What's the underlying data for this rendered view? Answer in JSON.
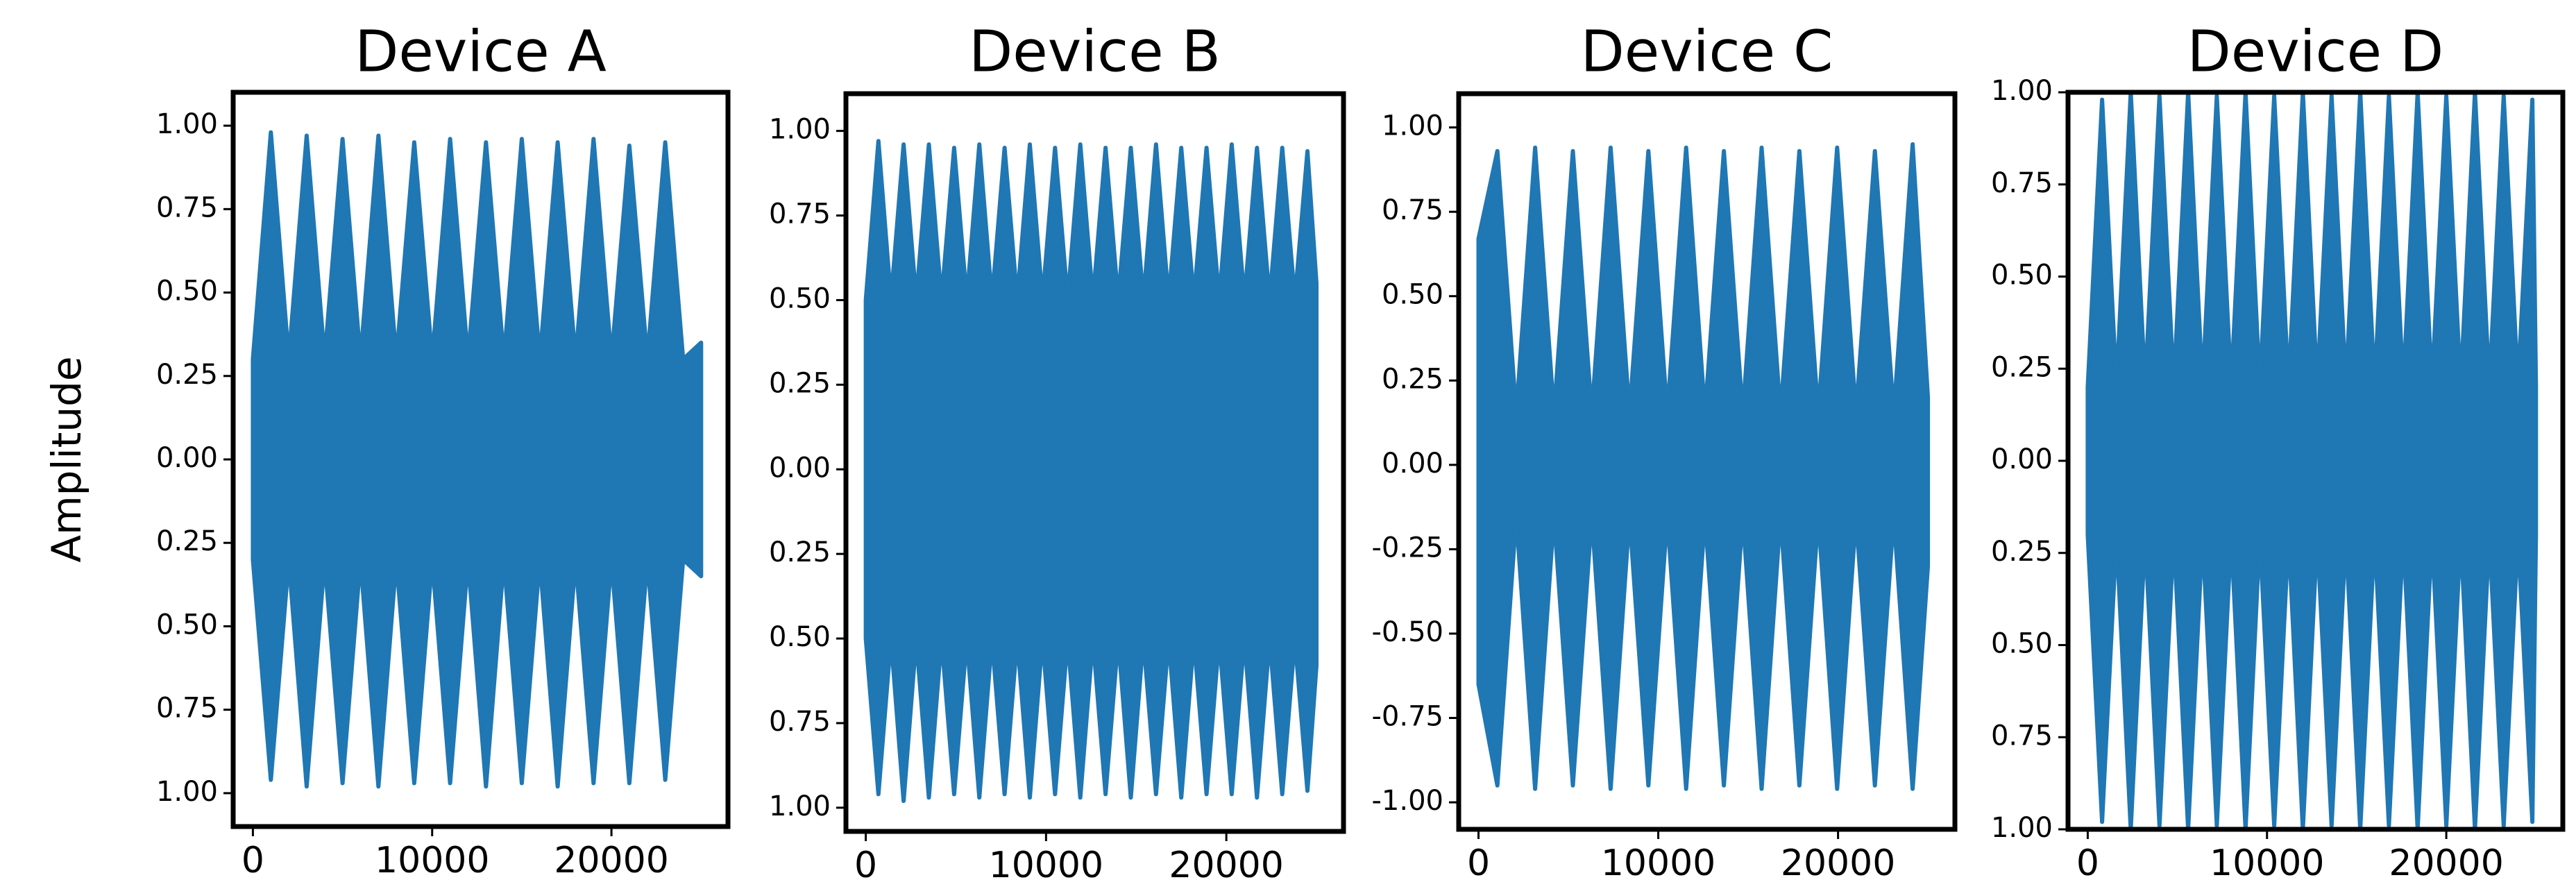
{
  "chart_data": [
    {
      "type": "area",
      "title": "Device A",
      "ylabel": "Amplitude",
      "color": "#1f77b4",
      "xlim": [
        -1100,
        26500
      ],
      "ylim": [
        -1.1,
        1.1
      ],
      "xticks": [
        0,
        10000,
        20000
      ],
      "yticks": [
        {
          "value": 1,
          "label": "1.00"
        },
        0.75,
        {
          "value": 0.5,
          "label": "0.50"
        },
        0.25,
        {
          "value": 0,
          "label": "0.00"
        },
        {
          "value": -0.25,
          "label": "0.25"
        },
        {
          "value": -0.5,
          "label": "0.50"
        },
        {
          "value": -0.75,
          "label": "0.75"
        },
        {
          "value": -1,
          "label": "1.00"
        }
      ],
      "x": [
        0,
        1000,
        2000,
        3000,
        4000,
        5000,
        6000,
        7000,
        8000,
        9000,
        10000,
        11000,
        12000,
        13000,
        14000,
        15000,
        16000,
        17000,
        18000,
        19000,
        20000,
        21000,
        22000,
        23000,
        24000,
        25000
      ],
      "upper": [
        0.3,
        0.98,
        0.3,
        0.97,
        0.3,
        0.96,
        0.3,
        0.97,
        0.3,
        0.95,
        0.3,
        0.96,
        0.3,
        0.95,
        0.3,
        0.96,
        0.3,
        0.95,
        0.3,
        0.96,
        0.3,
        0.94,
        0.3,
        0.95,
        0.3,
        0.35
      ],
      "lower": [
        -0.3,
        -0.96,
        -0.3,
        -0.98,
        -0.3,
        -0.97,
        -0.3,
        -0.98,
        -0.3,
        -0.97,
        -0.3,
        -0.97,
        -0.3,
        -0.98,
        -0.3,
        -0.97,
        -0.3,
        -0.98,
        -0.3,
        -0.97,
        -0.3,
        -0.97,
        -0.3,
        -0.96,
        -0.3,
        -0.35
      ]
    },
    {
      "type": "area",
      "title": "Device B",
      "color": "#1f77b4",
      "xlim": [
        -1100,
        26500
      ],
      "ylim": [
        -1.07,
        1.11
      ],
      "xticks": [
        0,
        10000,
        20000
      ],
      "yticks": [
        {
          "value": 1,
          "label": "1.00"
        },
        0.75,
        {
          "value": 0.5,
          "label": "0.50"
        },
        0.25,
        {
          "value": 0,
          "label": "0.00"
        },
        {
          "value": -0.25,
          "label": "0.25"
        },
        {
          "value": -0.5,
          "label": "0.50"
        },
        {
          "value": -0.75,
          "label": "0.75"
        },
        {
          "value": -1,
          "label": "1.00"
        }
      ],
      "x": [
        0,
        700,
        1400,
        2100,
        2800,
        3500,
        4200,
        4900,
        5600,
        6300,
        7000,
        7700,
        8400,
        9100,
        9800,
        10500,
        11200,
        11900,
        12600,
        13300,
        14000,
        14700,
        15400,
        16100,
        16800,
        17500,
        18200,
        18900,
        19600,
        20300,
        21000,
        21700,
        22400,
        23100,
        23800,
        24500,
        25000
      ],
      "upper": [
        0.5,
        0.97,
        0.5,
        0.96,
        0.5,
        0.96,
        0.5,
        0.95,
        0.5,
        0.96,
        0.5,
        0.95,
        0.5,
        0.96,
        0.5,
        0.95,
        0.5,
        0.96,
        0.5,
        0.95,
        0.5,
        0.95,
        0.5,
        0.96,
        0.5,
        0.95,
        0.5,
        0.95,
        0.5,
        0.96,
        0.5,
        0.95,
        0.5,
        0.95,
        0.5,
        0.94,
        0.55
      ],
      "lower": [
        -0.5,
        -0.96,
        -0.5,
        -0.98,
        -0.5,
        -0.97,
        -0.5,
        -0.96,
        -0.5,
        -0.97,
        -0.5,
        -0.96,
        -0.5,
        -0.97,
        -0.5,
        -0.96,
        -0.5,
        -0.97,
        -0.5,
        -0.96,
        -0.5,
        -0.97,
        -0.5,
        -0.96,
        -0.5,
        -0.97,
        -0.5,
        -0.96,
        -0.5,
        -0.96,
        -0.5,
        -0.97,
        -0.5,
        -0.96,
        -0.5,
        -0.95,
        -0.58
      ]
    },
    {
      "type": "area",
      "title": "Device C",
      "color": "#1f77b4",
      "xlim": [
        -1100,
        26500
      ],
      "ylim": [
        -1.08,
        1.1
      ],
      "xticks": [
        0,
        10000,
        20000
      ],
      "yticks": [
        {
          "value": 1,
          "label": "1.00"
        },
        0.75,
        {
          "value": 0.5,
          "label": "0.50"
        },
        0.25,
        {
          "value": 0,
          "label": "0.00"
        },
        -0.25,
        {
          "value": -0.5,
          "label": "-0.50"
        },
        -0.75,
        {
          "value": -1,
          "label": "-1.00"
        }
      ],
      "x": [
        0,
        1050,
        2100,
        3150,
        4200,
        5250,
        6300,
        7350,
        8400,
        9450,
        10500,
        11550,
        12600,
        13650,
        14700,
        15750,
        16800,
        17850,
        18900,
        19950,
        21000,
        22050,
        23100,
        24150,
        25000
      ],
      "upper": [
        0.67,
        0.93,
        0.15,
        0.94,
        0.15,
        0.93,
        0.15,
        0.94,
        0.15,
        0.93,
        0.15,
        0.94,
        0.15,
        0.93,
        0.15,
        0.94,
        0.15,
        0.93,
        0.15,
        0.94,
        0.15,
        0.93,
        0.15,
        0.95,
        0.2
      ],
      "lower": [
        -0.65,
        -0.95,
        -0.15,
        -0.96,
        -0.15,
        -0.95,
        -0.15,
        -0.96,
        -0.15,
        -0.95,
        -0.15,
        -0.96,
        -0.15,
        -0.95,
        -0.15,
        -0.96,
        -0.15,
        -0.95,
        -0.15,
        -0.96,
        -0.15,
        -0.95,
        -0.15,
        -0.96,
        -0.3
      ]
    },
    {
      "type": "area",
      "title": "Device D",
      "color": "#1f77b4",
      "xlim": [
        -1100,
        26500
      ],
      "ylim": [
        -1,
        1
      ],
      "xticks": [
        0,
        10000,
        20000
      ],
      "yticks": [
        {
          "value": 1,
          "label": "1.00"
        },
        0.75,
        {
          "value": 0.5,
          "label": "0.50"
        },
        0.25,
        {
          "value": 0,
          "label": "0.00"
        },
        {
          "value": -0.25,
          "label": "0.25"
        },
        {
          "value": -0.5,
          "label": "0.50"
        },
        {
          "value": -0.75,
          "label": "0.75"
        },
        {
          "value": -1,
          "label": "1.00"
        }
      ],
      "x": [
        0,
        800,
        1600,
        2400,
        3200,
        4000,
        4800,
        5600,
        6400,
        7200,
        8000,
        8800,
        9600,
        10400,
        11200,
        12000,
        12800,
        13600,
        14400,
        15200,
        16000,
        16800,
        17600,
        18400,
        19200,
        20000,
        20800,
        21600,
        22400,
        23200,
        24000,
        24800,
        25000
      ],
      "upper": [
        0.2,
        0.98,
        0.2,
        1.0,
        0.2,
        0.99,
        0.2,
        1.0,
        0.2,
        0.99,
        0.2,
        1.0,
        0.2,
        0.99,
        0.2,
        1.0,
        0.2,
        0.99,
        0.2,
        1.0,
        0.2,
        0.99,
        0.2,
        1.0,
        0.2,
        0.99,
        0.2,
        1.0,
        0.2,
        0.99,
        0.2,
        0.98,
        0.2
      ],
      "lower": [
        -0.2,
        -0.98,
        -0.2,
        -1.0,
        -0.2,
        -0.99,
        -0.2,
        -1.0,
        -0.2,
        -0.99,
        -0.2,
        -1.0,
        -0.2,
        -0.99,
        -0.2,
        -1.0,
        -0.2,
        -0.99,
        -0.2,
        -1.0,
        -0.2,
        -0.99,
        -0.2,
        -1.0,
        -0.2,
        -0.99,
        -0.2,
        -1.0,
        -0.2,
        -0.99,
        -0.2,
        -0.98,
        -0.2
      ]
    }
  ]
}
